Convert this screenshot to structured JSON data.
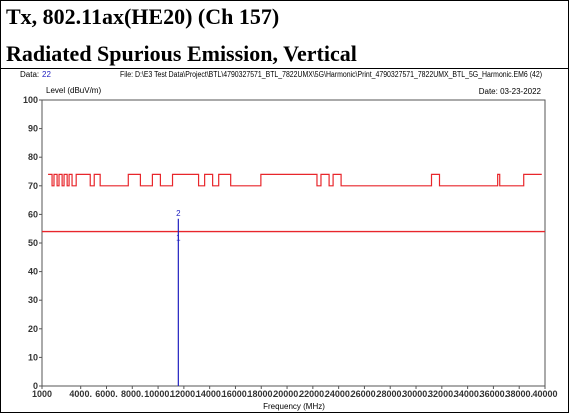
{
  "header": {
    "title": "Tx, 802.11ax(HE20) (Ch 157)",
    "subtitle": "Radiated Spurious Emission, Vertical"
  },
  "chart_data": {
    "type": "line",
    "data_label": "Data:",
    "data_value": "22",
    "file": "File: D:\\E3 Test Data\\Project\\BTL\\4790327571_BTL_7822UMX\\5G\\Harmonic\\Print_4790327571_7822UMX_BTL_5G_Harmonic.EM6 (42)",
    "date": "Date: 03-23-2022",
    "y_label": "Level (dBuV/m)",
    "x_label": "Frequency (MHz)",
    "xlim": [
      1000,
      40000
    ],
    "ylim": [
      0,
      100
    ],
    "xticks": [
      1000,
      {
        "value": 4000,
        "label": "4000."
      },
      {
        "value": 6000,
        "label": "6000."
      },
      {
        "value": 8000,
        "label": "8000."
      },
      {
        "value": 10000,
        "label": "10000."
      },
      {
        "value": 12000,
        "label": "12000."
      },
      {
        "value": 14000,
        "label": "14000."
      },
      {
        "value": 16000,
        "label": "16000."
      },
      {
        "value": 18000,
        "label": "18000."
      },
      {
        "value": 20000,
        "label": "20000."
      },
      {
        "value": 22000,
        "label": "22000."
      },
      {
        "value": 24000,
        "label": "24000."
      },
      {
        "value": 26000,
        "label": "26000."
      },
      {
        "value": 28000,
        "label": "28000."
      },
      {
        "value": 30000,
        "label": "30000."
      },
      {
        "value": 32000,
        "label": "32000."
      },
      {
        "value": 34000,
        "label": "34000."
      },
      {
        "value": 36000,
        "label": "36000."
      },
      {
        "value": 38000,
        "label": "38000."
      },
      40000
    ],
    "yticks": [
      0,
      10,
      20,
      30,
      40,
      50,
      60,
      70,
      80,
      90,
      100
    ],
    "limit": {
      "value": 54,
      "color": "#e8262b"
    },
    "series": [
      {
        "color": "#e8262b",
        "x": [
          1470,
          1780,
          1780,
          1930,
          1930,
          2170,
          2170,
          2320,
          2320,
          2560,
          2560,
          2710,
          2710,
          2950,
          2950,
          3100,
          3100,
          3330,
          3330,
          3650,
          3650,
          4740,
          4740,
          5050,
          5050,
          5510,
          5510,
          7690,
          7690,
          8630,
          8630,
          9560,
          9560,
          10180,
          10180,
          11120,
          11120,
          13140,
          13140,
          13610,
          13610,
          14230,
          14230,
          14700,
          14700,
          15630,
          15630,
          17970,
          17970,
          22320,
          22320,
          22630,
          22630,
          23260,
          23260,
          23570,
          23570,
          24190,
          24190,
          31200,
          31200,
          31820,
          31820,
          36330,
          36330,
          36490,
          36490,
          38350,
          38350,
          39750
        ],
        "values": [
          74,
          74,
          70,
          70,
          74,
          74,
          70,
          70,
          74,
          74,
          70,
          70,
          74,
          74,
          70,
          70,
          74,
          74,
          70,
          70,
          74,
          74,
          70,
          70,
          74,
          74,
          70,
          70,
          74,
          74,
          70,
          70,
          74,
          74,
          70,
          70,
          74,
          74,
          70,
          70,
          74,
          74,
          70,
          70,
          74,
          74,
          70,
          70,
          74,
          74,
          70,
          70,
          74,
          74,
          70,
          70,
          74,
          74,
          70,
          70,
          74,
          74,
          70,
          70,
          74,
          74,
          70,
          70,
          74,
          74
        ]
      },
      {
        "color": "#2020c0",
        "x": [
          11570,
          11570
        ],
        "values": [
          0,
          58.5
        ]
      }
    ],
    "markers": [
      {
        "label": "2",
        "x": 11570,
        "value": 60.5,
        "color": "#2020c0"
      },
      {
        "label": "1",
        "x": 11570,
        "value": 52,
        "color": "#2020c0"
      }
    ]
  }
}
